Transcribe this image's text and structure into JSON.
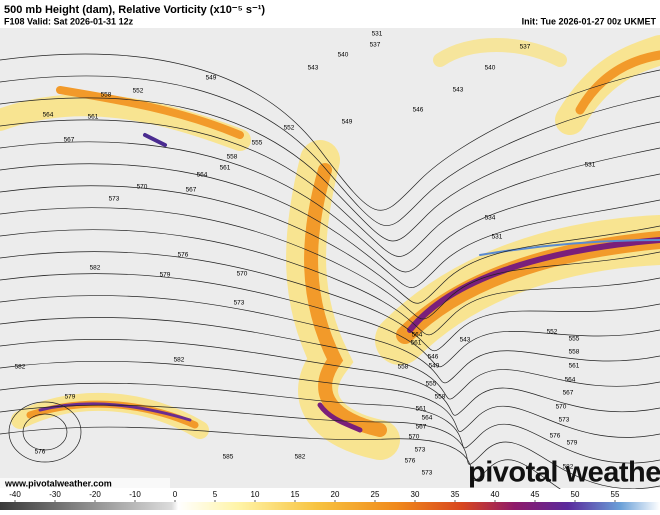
{
  "header": {
    "title": "500 mb Height (dam), Relative Vorticity (x10⁻⁵ s⁻¹)",
    "valid": "F108 Valid: Sat 2026-01-31 12z",
    "init": "Init: Tue 2026-01-27 00z UKMET"
  },
  "contour_labels": [
    "531",
    "537",
    "540",
    "543",
    "537",
    "540",
    "543",
    "546",
    "549",
    "552",
    "555",
    "549",
    "552",
    "558",
    "561",
    "564",
    "567",
    "564",
    "567",
    "561",
    "558",
    "570",
    "573",
    "576",
    "579",
    "582",
    "570",
    "573",
    "582",
    "582",
    "579",
    "576",
    "585",
    "582",
    "534",
    "531",
    "531",
    "546",
    "549",
    "543",
    "552",
    "555",
    "558",
    "561",
    "564",
    "567",
    "570",
    "573",
    "576",
    "579",
    "582",
    "558",
    "555",
    "558",
    "561",
    "564",
    "567",
    "570",
    "573",
    "576",
    "573",
    "564",
    "561"
  ],
  "colorbar": {
    "ticks": [
      -40,
      -30,
      -20,
      -10,
      0,
      5,
      10,
      15,
      20,
      25,
      30,
      35,
      40,
      45,
      50,
      55
    ]
  },
  "footer": {
    "website": "www.pivotalweather.com",
    "logo": "pivotal weather"
  }
}
